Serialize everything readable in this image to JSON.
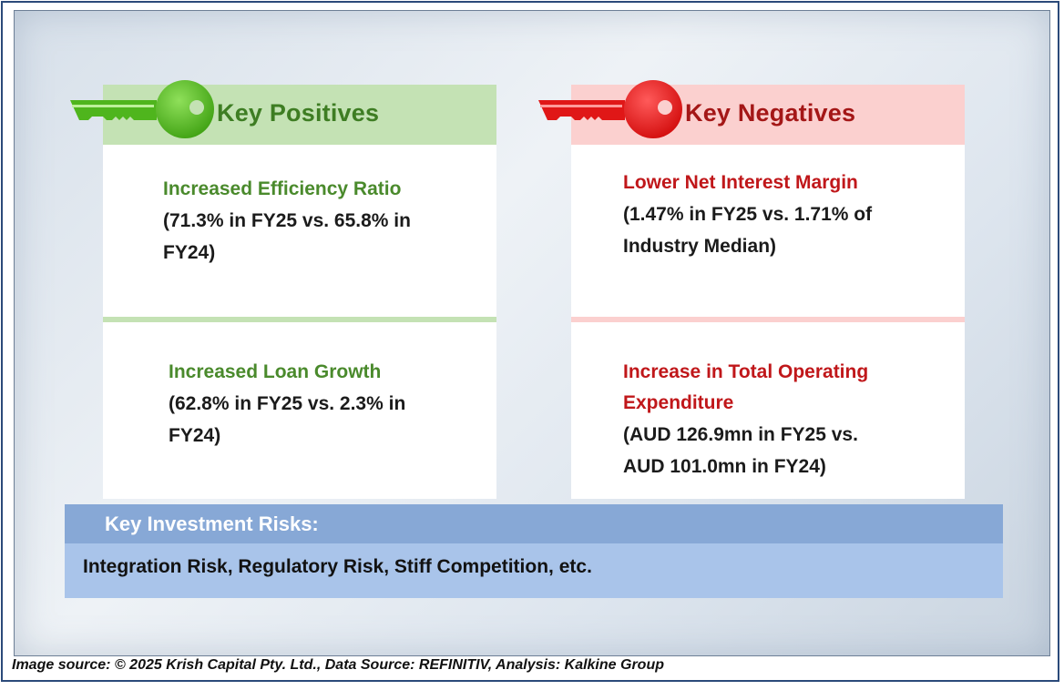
{
  "positives": {
    "heading": "Key Positives",
    "accent_color": "#4a8a2c",
    "items": [
      {
        "title": "Increased Efficiency Ratio",
        "line1": "(71.3% in FY25 vs. 65.8% in",
        "line2": "FY24)"
      },
      {
        "title": "Increased Loan Growth",
        "line1": "(62.8% in FY25 vs. 2.3% in",
        "line2": "FY24)"
      }
    ]
  },
  "negatives": {
    "heading": "Key Negatives",
    "accent_color": "#c0171a",
    "items": [
      {
        "title": "Lower Net Interest Margin",
        "line1": "(1.47% in FY25 vs. 1.71% of",
        "line2": "Industry Median)"
      },
      {
        "title_line1": "Increase in Total Operating",
        "title_line2": "Expenditure",
        "line1": "(AUD 126.9mn in FY25 vs.",
        "line2": "AUD 101.0mn in FY24)"
      }
    ]
  },
  "risks": {
    "heading": "Key Investment Risks:",
    "text": "Integration Risk, Regulatory Risk, Stiff Competition, etc."
  },
  "footer": {
    "source": "Image source: © 2025 Krish Capital Pty. Ltd., Data Source: REFINITIV, Analysis: Kalkine Group"
  },
  "icons": {
    "positive_key": "green-key-icon",
    "negative_key": "red-key-icon"
  }
}
